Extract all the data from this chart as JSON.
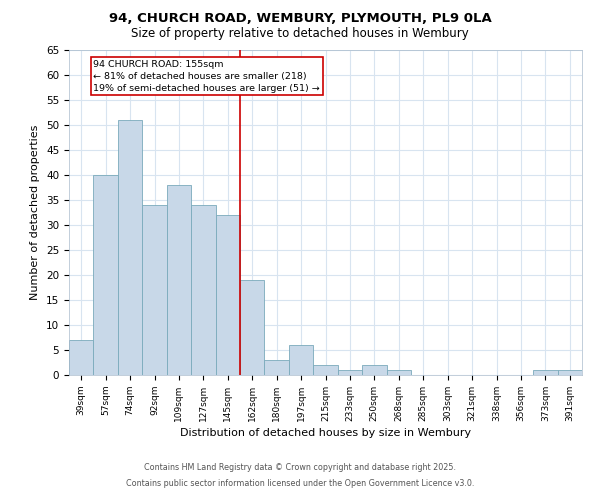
{
  "title1": "94, CHURCH ROAD, WEMBURY, PLYMOUTH, PL9 0LA",
  "title2": "Size of property relative to detached houses in Wembury",
  "xlabel": "Distribution of detached houses by size in Wembury",
  "ylabel": "Number of detached properties",
  "categories": [
    "39sqm",
    "57sqm",
    "74sqm",
    "92sqm",
    "109sqm",
    "127sqm",
    "145sqm",
    "162sqm",
    "180sqm",
    "197sqm",
    "215sqm",
    "233sqm",
    "250sqm",
    "268sqm",
    "285sqm",
    "303sqm",
    "321sqm",
    "338sqm",
    "356sqm",
    "373sqm",
    "391sqm"
  ],
  "values": [
    7,
    40,
    51,
    34,
    38,
    34,
    32,
    19,
    3,
    6,
    2,
    1,
    2,
    1,
    0,
    0,
    0,
    0,
    0,
    1,
    1
  ],
  "bar_color": "#c8d8e8",
  "bar_edge_color": "#7aaabb",
  "marker_label": "94 CHURCH ROAD: 155sqm",
  "stat1": "← 81% of detached houses are smaller (218)",
  "stat2": "19% of semi-detached houses are larger (51) →",
  "red_line_x": 6.5,
  "ylim": [
    0,
    65
  ],
  "yticks": [
    0,
    5,
    10,
    15,
    20,
    25,
    30,
    35,
    40,
    45,
    50,
    55,
    60,
    65
  ],
  "footer1": "Contains HM Land Registry data © Crown copyright and database right 2025.",
  "footer2": "Contains public sector information licensed under the Open Government Licence v3.0.",
  "bg_color": "#ffffff",
  "grid_color": "#d8e4f0"
}
